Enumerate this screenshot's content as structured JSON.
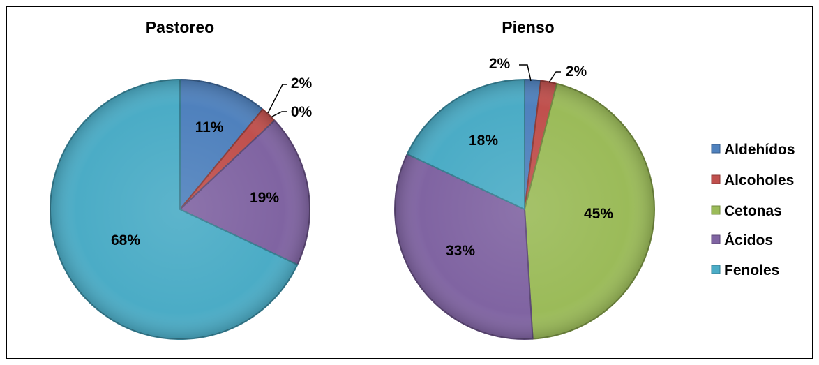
{
  "chart_data": [
    {
      "type": "pie",
      "title": "Pastoreo",
      "slices": [
        {
          "name": "Aldehídos",
          "value": 11,
          "label": "11%"
        },
        {
          "name": "Alcoholes",
          "value": 2,
          "label": "2%"
        },
        {
          "name": "Cetonas",
          "value": 0,
          "label": "0%"
        },
        {
          "name": "Ácidos",
          "value": 19,
          "label": "19%"
        },
        {
          "name": "Fenoles",
          "value": 68,
          "label": "68%"
        }
      ]
    },
    {
      "type": "pie",
      "title": "Pienso",
      "slices": [
        {
          "name": "Aldehídos",
          "value": 2,
          "label": "2%"
        },
        {
          "name": "Alcoholes",
          "value": 2,
          "label": "2%"
        },
        {
          "name": "Cetonas",
          "value": 45,
          "label": "45%"
        },
        {
          "name": "Ácidos",
          "value": 33,
          "label": "33%"
        },
        {
          "name": "Fenoles",
          "value": 18,
          "label": "18%"
        }
      ]
    }
  ],
  "legend": {
    "position": "right",
    "items": [
      "Aldehídos",
      "Alcoholes",
      "Cetonas",
      "Ácidos",
      "Fenoles"
    ]
  },
  "colors": {
    "Aldehídos": "#4f81bd",
    "Alcoholes": "#c0504d",
    "Cetonas": "#9bbb59",
    "Ácidos": "#8064a2",
    "Fenoles": "#4bacc6"
  }
}
